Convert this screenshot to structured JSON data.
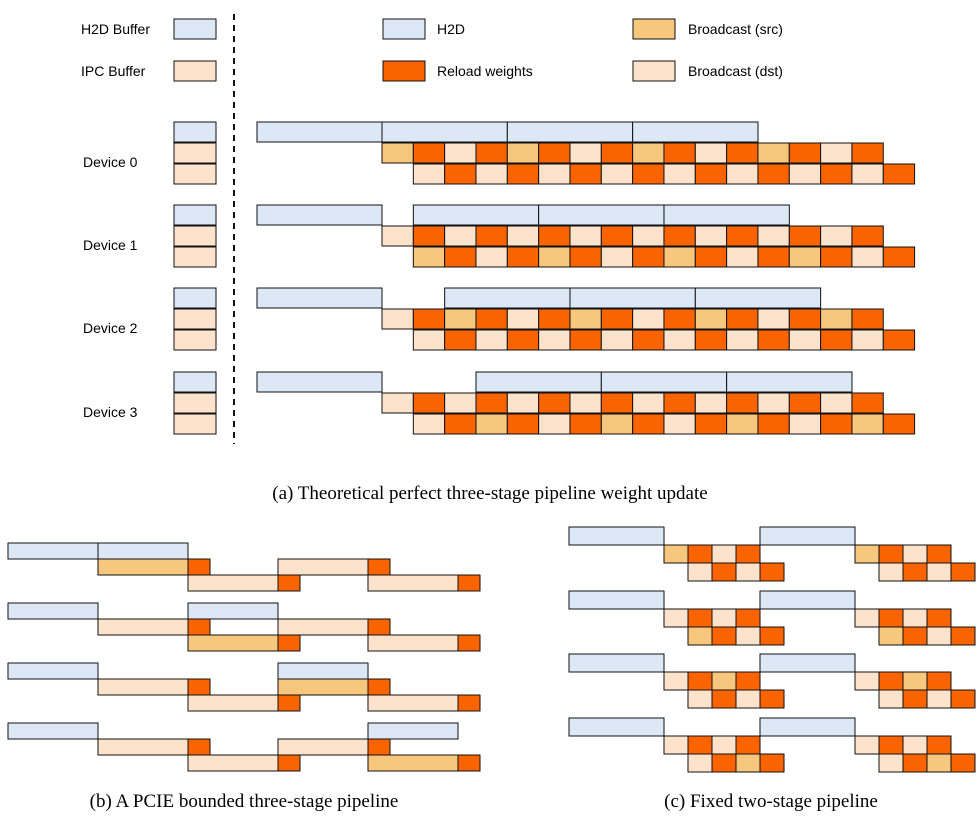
{
  "colors": {
    "h2d": "#dde8f7",
    "reload": "#f96400",
    "bsrc": "#f7c77e",
    "bdst": "#fde3cb",
    "stroke": "#111111"
  },
  "legend": {
    "h2d_buffer": "H2D Buffer",
    "ipc_buffer": "IPC Buffer",
    "h2d": "H2D",
    "reload": "Reload weights",
    "bsrc": "Broadcast (src)",
    "bdst": "Broadcast (dst)"
  },
  "devices": [
    "Device 0",
    "Device 1",
    "Device 2",
    "Device 3"
  ],
  "captions": {
    "a": "(a) Theoretical perfect three-stage pipeline weight update",
    "b": "(b) A PCIE bounded three-stage pipeline",
    "c": "(c) Fixed two-stage pipeline"
  }
}
